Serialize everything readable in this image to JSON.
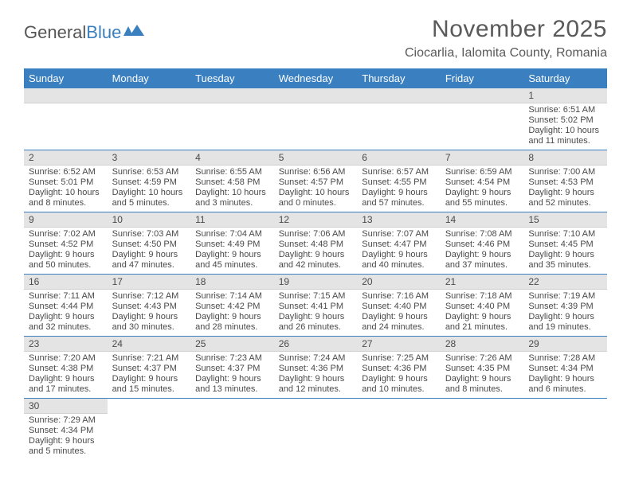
{
  "logo": {
    "text1": "General",
    "text2": "Blue"
  },
  "title": "November 2025",
  "location": "Ciocarlia, Ialomita County, Romania",
  "colors": {
    "headerBg": "#3a7fbf",
    "headerFg": "#ffffff",
    "dayBarBg": "#e4e4e4",
    "rowBorder": "#3a7fbf",
    "text": "#4a4a4a",
    "pageBg": "#ffffff"
  },
  "weekdays": [
    "Sunday",
    "Monday",
    "Tuesday",
    "Wednesday",
    "Thursday",
    "Friday",
    "Saturday"
  ],
  "leading_blanks": 6,
  "days": [
    {
      "n": 1,
      "sunrise": "6:51 AM",
      "sunset": "5:02 PM",
      "daylight": "10 hours and 11 minutes."
    },
    {
      "n": 2,
      "sunrise": "6:52 AM",
      "sunset": "5:01 PM",
      "daylight": "10 hours and 8 minutes."
    },
    {
      "n": 3,
      "sunrise": "6:53 AM",
      "sunset": "4:59 PM",
      "daylight": "10 hours and 5 minutes."
    },
    {
      "n": 4,
      "sunrise": "6:55 AM",
      "sunset": "4:58 PM",
      "daylight": "10 hours and 3 minutes."
    },
    {
      "n": 5,
      "sunrise": "6:56 AM",
      "sunset": "4:57 PM",
      "daylight": "10 hours and 0 minutes."
    },
    {
      "n": 6,
      "sunrise": "6:57 AM",
      "sunset": "4:55 PM",
      "daylight": "9 hours and 57 minutes."
    },
    {
      "n": 7,
      "sunrise": "6:59 AM",
      "sunset": "4:54 PM",
      "daylight": "9 hours and 55 minutes."
    },
    {
      "n": 8,
      "sunrise": "7:00 AM",
      "sunset": "4:53 PM",
      "daylight": "9 hours and 52 minutes."
    },
    {
      "n": 9,
      "sunrise": "7:02 AM",
      "sunset": "4:52 PM",
      "daylight": "9 hours and 50 minutes."
    },
    {
      "n": 10,
      "sunrise": "7:03 AM",
      "sunset": "4:50 PM",
      "daylight": "9 hours and 47 minutes."
    },
    {
      "n": 11,
      "sunrise": "7:04 AM",
      "sunset": "4:49 PM",
      "daylight": "9 hours and 45 minutes."
    },
    {
      "n": 12,
      "sunrise": "7:06 AM",
      "sunset": "4:48 PM",
      "daylight": "9 hours and 42 minutes."
    },
    {
      "n": 13,
      "sunrise": "7:07 AM",
      "sunset": "4:47 PM",
      "daylight": "9 hours and 40 minutes."
    },
    {
      "n": 14,
      "sunrise": "7:08 AM",
      "sunset": "4:46 PM",
      "daylight": "9 hours and 37 minutes."
    },
    {
      "n": 15,
      "sunrise": "7:10 AM",
      "sunset": "4:45 PM",
      "daylight": "9 hours and 35 minutes."
    },
    {
      "n": 16,
      "sunrise": "7:11 AM",
      "sunset": "4:44 PM",
      "daylight": "9 hours and 32 minutes."
    },
    {
      "n": 17,
      "sunrise": "7:12 AM",
      "sunset": "4:43 PM",
      "daylight": "9 hours and 30 minutes."
    },
    {
      "n": 18,
      "sunrise": "7:14 AM",
      "sunset": "4:42 PM",
      "daylight": "9 hours and 28 minutes."
    },
    {
      "n": 19,
      "sunrise": "7:15 AM",
      "sunset": "4:41 PM",
      "daylight": "9 hours and 26 minutes."
    },
    {
      "n": 20,
      "sunrise": "7:16 AM",
      "sunset": "4:40 PM",
      "daylight": "9 hours and 24 minutes."
    },
    {
      "n": 21,
      "sunrise": "7:18 AM",
      "sunset": "4:40 PM",
      "daylight": "9 hours and 21 minutes."
    },
    {
      "n": 22,
      "sunrise": "7:19 AM",
      "sunset": "4:39 PM",
      "daylight": "9 hours and 19 minutes."
    },
    {
      "n": 23,
      "sunrise": "7:20 AM",
      "sunset": "4:38 PM",
      "daylight": "9 hours and 17 minutes."
    },
    {
      "n": 24,
      "sunrise": "7:21 AM",
      "sunset": "4:37 PM",
      "daylight": "9 hours and 15 minutes."
    },
    {
      "n": 25,
      "sunrise": "7:23 AM",
      "sunset": "4:37 PM",
      "daylight": "9 hours and 13 minutes."
    },
    {
      "n": 26,
      "sunrise": "7:24 AM",
      "sunset": "4:36 PM",
      "daylight": "9 hours and 12 minutes."
    },
    {
      "n": 27,
      "sunrise": "7:25 AM",
      "sunset": "4:36 PM",
      "daylight": "9 hours and 10 minutes."
    },
    {
      "n": 28,
      "sunrise": "7:26 AM",
      "sunset": "4:35 PM",
      "daylight": "9 hours and 8 minutes."
    },
    {
      "n": 29,
      "sunrise": "7:28 AM",
      "sunset": "4:34 PM",
      "daylight": "9 hours and 6 minutes."
    },
    {
      "n": 30,
      "sunrise": "7:29 AM",
      "sunset": "4:34 PM",
      "daylight": "9 hours and 5 minutes."
    }
  ],
  "labels": {
    "sunrise": "Sunrise:",
    "sunset": "Sunset:",
    "daylight": "Daylight:"
  }
}
